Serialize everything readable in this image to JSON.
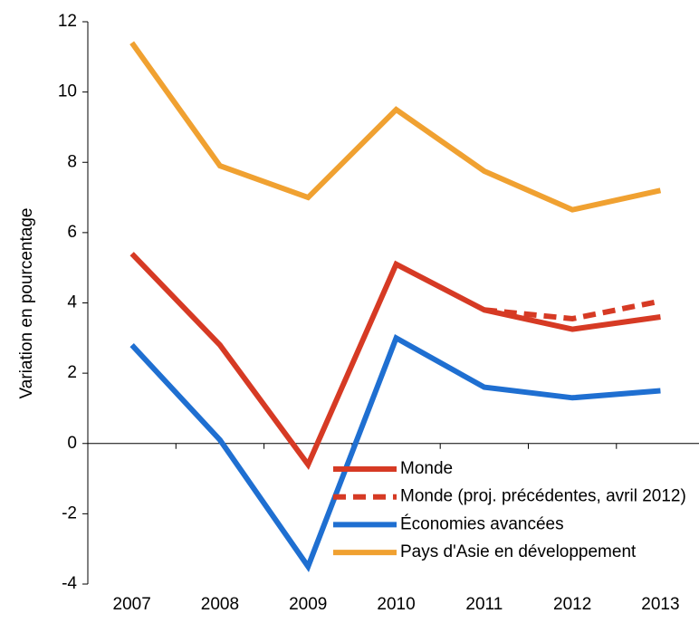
{
  "chart_data": {
    "type": "line",
    "y_label": "Variation en pourcentage",
    "categories": [
      "2007",
      "2008",
      "2009",
      "2010",
      "2011",
      "2012",
      "2013"
    ],
    "series": [
      {
        "name": "Monde",
        "color": "#d63a24",
        "style": "solid",
        "values": [
          5.4,
          2.8,
          -0.6,
          5.1,
          3.8,
          3.25,
          3.6
        ]
      },
      {
        "name": "Monde (proj. précédentes, avril 2012)",
        "color": "#d63a24",
        "style": "dashed",
        "values": [
          null,
          null,
          null,
          null,
          3.8,
          3.55,
          4.05
        ]
      },
      {
        "name": "Économies avancées",
        "color": "#1f6fd1",
        "style": "solid",
        "values": [
          2.8,
          0.1,
          -3.5,
          3.0,
          1.6,
          1.3,
          1.5
        ]
      },
      {
        "name": "Pays d'Asie en développement",
        "color": "#f0a131",
        "style": "solid",
        "values": [
          11.4,
          7.9,
          7.0,
          9.5,
          7.75,
          6.65,
          7.2
        ]
      }
    ],
    "ylim": [
      -4,
      12
    ],
    "yticks": [
      -4,
      -2,
      0,
      2,
      4,
      6,
      8,
      10,
      12
    ]
  }
}
